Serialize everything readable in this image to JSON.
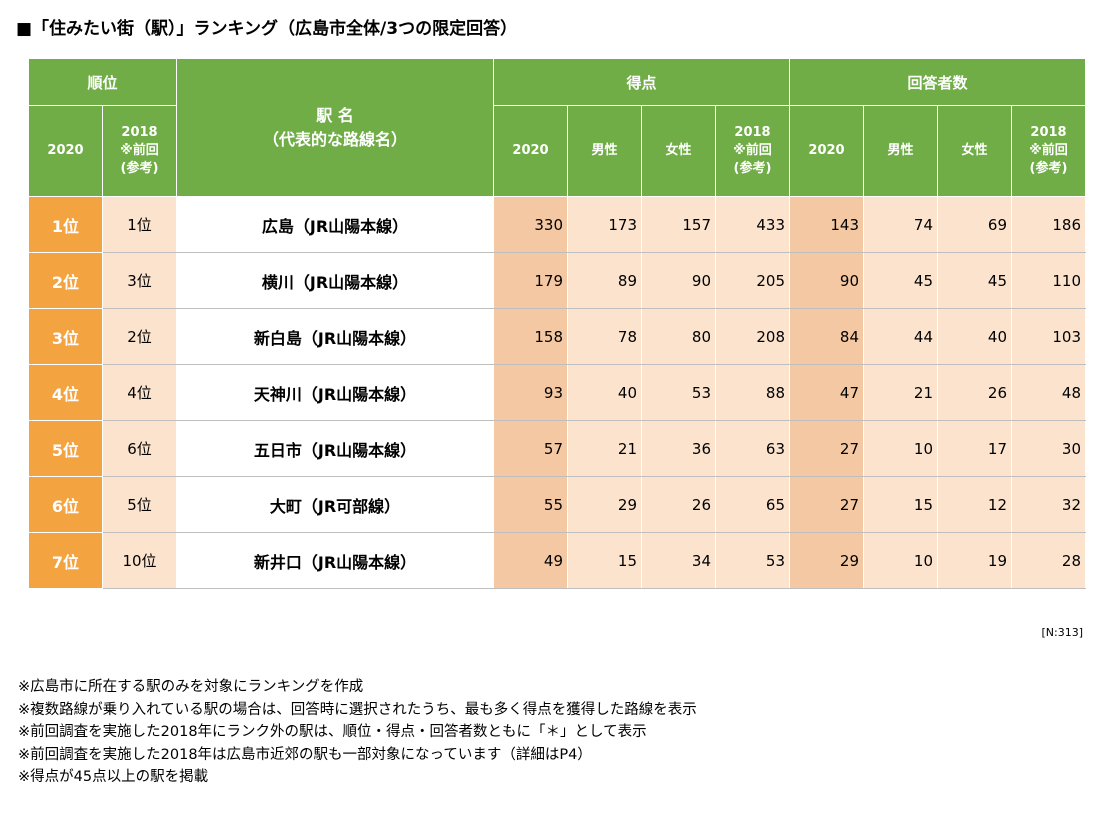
{
  "title": "■「住みたい街（駅）」ランキング（広島市全体/3つの限定回答）",
  "headers": {
    "rank": "順位",
    "rank_2020": "2020",
    "rank_2018_lines": [
      "2018",
      "※前回",
      "(参考)"
    ],
    "station_lines": [
      "駅 名",
      "（代表的な路線名）"
    ],
    "score": "得点",
    "count": "回答者数",
    "col_2020": "2020",
    "male": "男性",
    "female": "女性",
    "prev_lines": [
      "2018",
      "※前回",
      "(参考)"
    ]
  },
  "rows": [
    {
      "rank": "1位",
      "prev_rank": "1位",
      "station": "広島（JR山陽本線）",
      "score": "330",
      "score_male": "173",
      "score_female": "157",
      "score_2018": "433",
      "count": "143",
      "count_male": "74",
      "count_female": "69",
      "count_2018": "186"
    },
    {
      "rank": "2位",
      "prev_rank": "3位",
      "station": "横川（JR山陽本線）",
      "score": "179",
      "score_male": "89",
      "score_female": "90",
      "score_2018": "205",
      "count": "90",
      "count_male": "45",
      "count_female": "45",
      "count_2018": "110"
    },
    {
      "rank": "3位",
      "prev_rank": "2位",
      "station": "新白島（JR山陽本線）",
      "score": "158",
      "score_male": "78",
      "score_female": "80",
      "score_2018": "208",
      "count": "84",
      "count_male": "44",
      "count_female": "40",
      "count_2018": "103"
    },
    {
      "rank": "4位",
      "prev_rank": "4位",
      "station": "天神川（JR山陽本線）",
      "score": "93",
      "score_male": "40",
      "score_female": "53",
      "score_2018": "88",
      "count": "47",
      "count_male": "21",
      "count_female": "26",
      "count_2018": "48"
    },
    {
      "rank": "5位",
      "prev_rank": "6位",
      "station": "五日市（JR山陽本線）",
      "score": "57",
      "score_male": "21",
      "score_female": "36",
      "score_2018": "63",
      "count": "27",
      "count_male": "10",
      "count_female": "17",
      "count_2018": "30"
    },
    {
      "rank": "6位",
      "prev_rank": "5位",
      "station": "大町（JR可部線）",
      "score": "55",
      "score_male": "29",
      "score_female": "26",
      "score_2018": "65",
      "count": "27",
      "count_male": "15",
      "count_female": "12",
      "count_2018": "32"
    },
    {
      "rank": "7位",
      "prev_rank": "10位",
      "station": "新井口（JR山陽本線）",
      "score": "49",
      "score_male": "15",
      "score_female": "34",
      "score_2018": "53",
      "count": "29",
      "count_male": "10",
      "count_female": "19",
      "count_2018": "28"
    }
  ],
  "sample_note": "[N:313]",
  "notes": [
    "※広島市に所在する駅のみを対象にランキングを作成",
    "※複数路線が乗り入れている駅の場合は、回答時に選択されたうち、最も多く得点を獲得した路線を表示",
    "※前回調査を実施した2018年にランク外の駅は、順位・得点・回答者数ともに「＊」として表示",
    "※前回調査を実施した2018年は広島市近郊の駅も一部対象になっています（詳細はP4）",
    "※得点が45点以上の駅を掲載"
  ],
  "colors": {
    "header_green": "#70ad47",
    "rank_orange": "#f4a341",
    "dark_peach": "#f4c8a2",
    "light_peach": "#fbe3cd"
  }
}
